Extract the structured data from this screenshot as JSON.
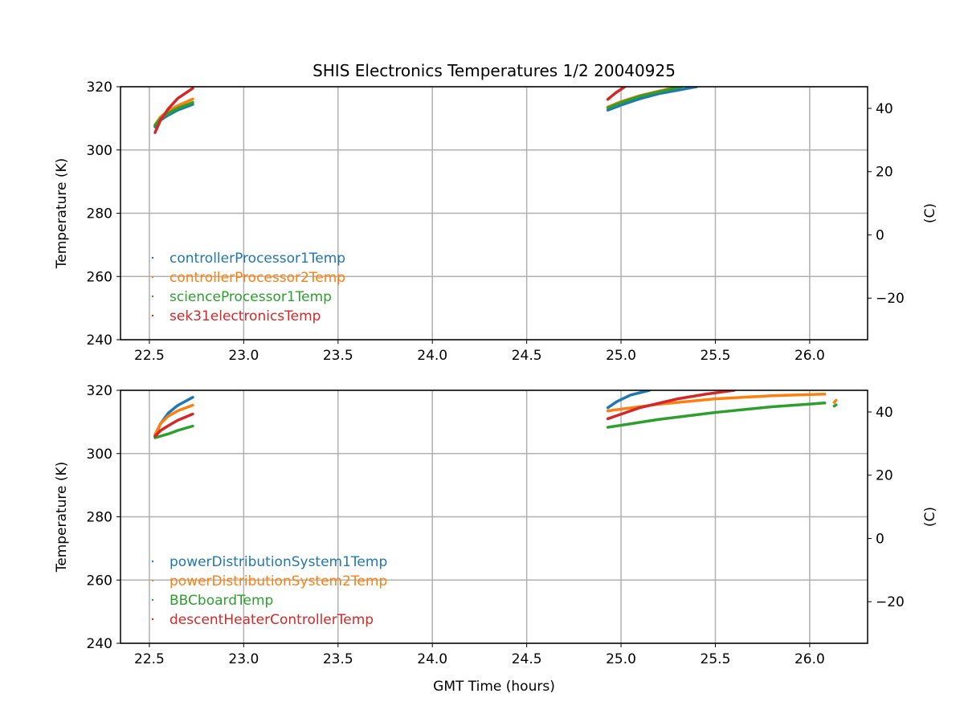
{
  "chart_data": [
    {
      "type": "scatter",
      "title": "SHIS Electronics Temperatures 1/2 20040925",
      "xlabel": "",
      "ylabel": "Temperature (K)",
      "ylabel_right": "(C)",
      "xlim": [
        22.347,
        26.307
      ],
      "ylim": [
        240,
        320
      ],
      "xticks": [
        "22.5",
        "23.0",
        "23.5",
        "24.0",
        "24.5",
        "25.0",
        "25.5",
        "26.0"
      ],
      "yticks": [
        "240",
        "260",
        "280",
        "300",
        "320"
      ],
      "yticks_right": [
        "−20",
        "0",
        "20",
        "40"
      ],
      "grid": true,
      "legend": "center-left",
      "series": [
        {
          "name": "controllerProcessor1Temp",
          "color": "#1f77b4",
          "segments": [
            [
              [
                22.53,
                307.3
              ],
              [
                22.56,
                309.5
              ],
              [
                22.6,
                311
              ],
              [
                22.65,
                312.6
              ],
              [
                22.73,
                314.4
              ]
            ],
            [
              [
                24.93,
                312.6
              ],
              [
                25.0,
                314.2
              ],
              [
                25.1,
                316.2
              ],
              [
                25.2,
                317.8
              ],
              [
                25.4,
                320
              ]
            ]
          ]
        },
        {
          "name": "controllerProcessor2Temp",
          "color": "#ff7f0e",
          "segments": [
            [
              [
                22.53,
                308
              ],
              [
                22.56,
                310.5
              ],
              [
                22.6,
                312.3
              ],
              [
                22.65,
                314
              ],
              [
                22.73,
                316.1
              ]
            ],
            [
              [
                24.93,
                313.6
              ],
              [
                25.0,
                315.3
              ],
              [
                25.1,
                317.2
              ],
              [
                25.2,
                318.6
              ],
              [
                25.3,
                320
              ]
            ]
          ]
        },
        {
          "name": "scienceProcessor1Temp",
          "color": "#2ca02c",
          "segments": [
            [
              [
                22.53,
                307.7
              ],
              [
                22.56,
                310
              ],
              [
                22.6,
                311.6
              ],
              [
                22.65,
                313.2
              ],
              [
                22.73,
                315
              ]
            ],
            [
              [
                24.93,
                313.3
              ],
              [
                25.0,
                315
              ],
              [
                25.1,
                317
              ],
              [
                25.2,
                318.4
              ],
              [
                25.32,
                320
              ]
            ]
          ]
        },
        {
          "name": "sek31electronicsTemp",
          "color": "#d62728",
          "segments": [
            [
              [
                22.53,
                305.5
              ],
              [
                22.56,
                309.5
              ],
              [
                22.6,
                313
              ],
              [
                22.65,
                316.3
              ],
              [
                22.73,
                319.5
              ]
            ],
            [
              [
                24.93,
                316
              ],
              [
                24.97,
                318
              ],
              [
                25.02,
                320
              ]
            ]
          ]
        }
      ]
    },
    {
      "type": "scatter",
      "title": "",
      "xlabel": "GMT Time (hours)",
      "ylabel": "Temperature (K)",
      "ylabel_right": "(C)",
      "xlim": [
        22.347,
        26.307
      ],
      "ylim": [
        240,
        320
      ],
      "xticks": [
        "22.5",
        "23.0",
        "23.5",
        "24.0",
        "24.5",
        "25.0",
        "25.5",
        "26.0"
      ],
      "yticks": [
        "240",
        "260",
        "280",
        "300",
        "320"
      ],
      "yticks_right": [
        "−20",
        "0",
        "20",
        "40"
      ],
      "grid": true,
      "legend": "center-left",
      "series": [
        {
          "name": "powerDistributionSystem1Temp",
          "color": "#1f77b4",
          "segments": [
            [
              [
                22.53,
                305.5
              ],
              [
                22.56,
                309.5
              ],
              [
                22.6,
                312.8
              ],
              [
                22.65,
                315.2
              ],
              [
                22.73,
                317.8
              ]
            ],
            [
              [
                24.93,
                314.5
              ],
              [
                24.98,
                316.5
              ],
              [
                25.05,
                318.5
              ],
              [
                25.15,
                320
              ]
            ]
          ]
        },
        {
          "name": "powerDistributionSystem2Temp",
          "color": "#ff7f0e",
          "segments": [
            [
              [
                22.53,
                306
              ],
              [
                22.56,
                309.5
              ],
              [
                22.6,
                311.8
              ],
              [
                22.65,
                313.5
              ],
              [
                22.73,
                315.3
              ]
            ],
            [
              [
                24.93,
                313.5
              ],
              [
                25.2,
                315.6
              ],
              [
                25.5,
                317.3
              ],
              [
                25.8,
                318.3
              ],
              [
                26.08,
                318.8
              ]
            ],
            [
              [
                26.13,
                316.2
              ],
              [
                26.14,
                316.8
              ]
            ]
          ]
        },
        {
          "name": "BBCboardTemp",
          "color": "#2ca02c",
          "segments": [
            [
              [
                22.53,
                305
              ],
              [
                22.6,
                306.2
              ],
              [
                22.65,
                307.3
              ],
              [
                22.73,
                308.7
              ]
            ],
            [
              [
                24.93,
                308.3
              ],
              [
                25.2,
                310.8
              ],
              [
                25.5,
                313
              ],
              [
                25.8,
                314.8
              ],
              [
                26.08,
                316
              ]
            ],
            [
              [
                26.13,
                315
              ],
              [
                26.14,
                315.4
              ]
            ]
          ]
        },
        {
          "name": "descentHeaterControllerTemp",
          "color": "#d62728",
          "segments": [
            [
              [
                22.53,
                305.5
              ],
              [
                22.56,
                307.3
              ],
              [
                22.6,
                308.8
              ],
              [
                22.65,
                310.5
              ],
              [
                22.73,
                312.5
              ]
            ],
            [
              [
                24.93,
                311
              ],
              [
                25.1,
                314.5
              ],
              [
                25.3,
                317.3
              ],
              [
                25.45,
                318.8
              ],
              [
                25.6,
                320
              ]
            ]
          ]
        }
      ]
    }
  ]
}
